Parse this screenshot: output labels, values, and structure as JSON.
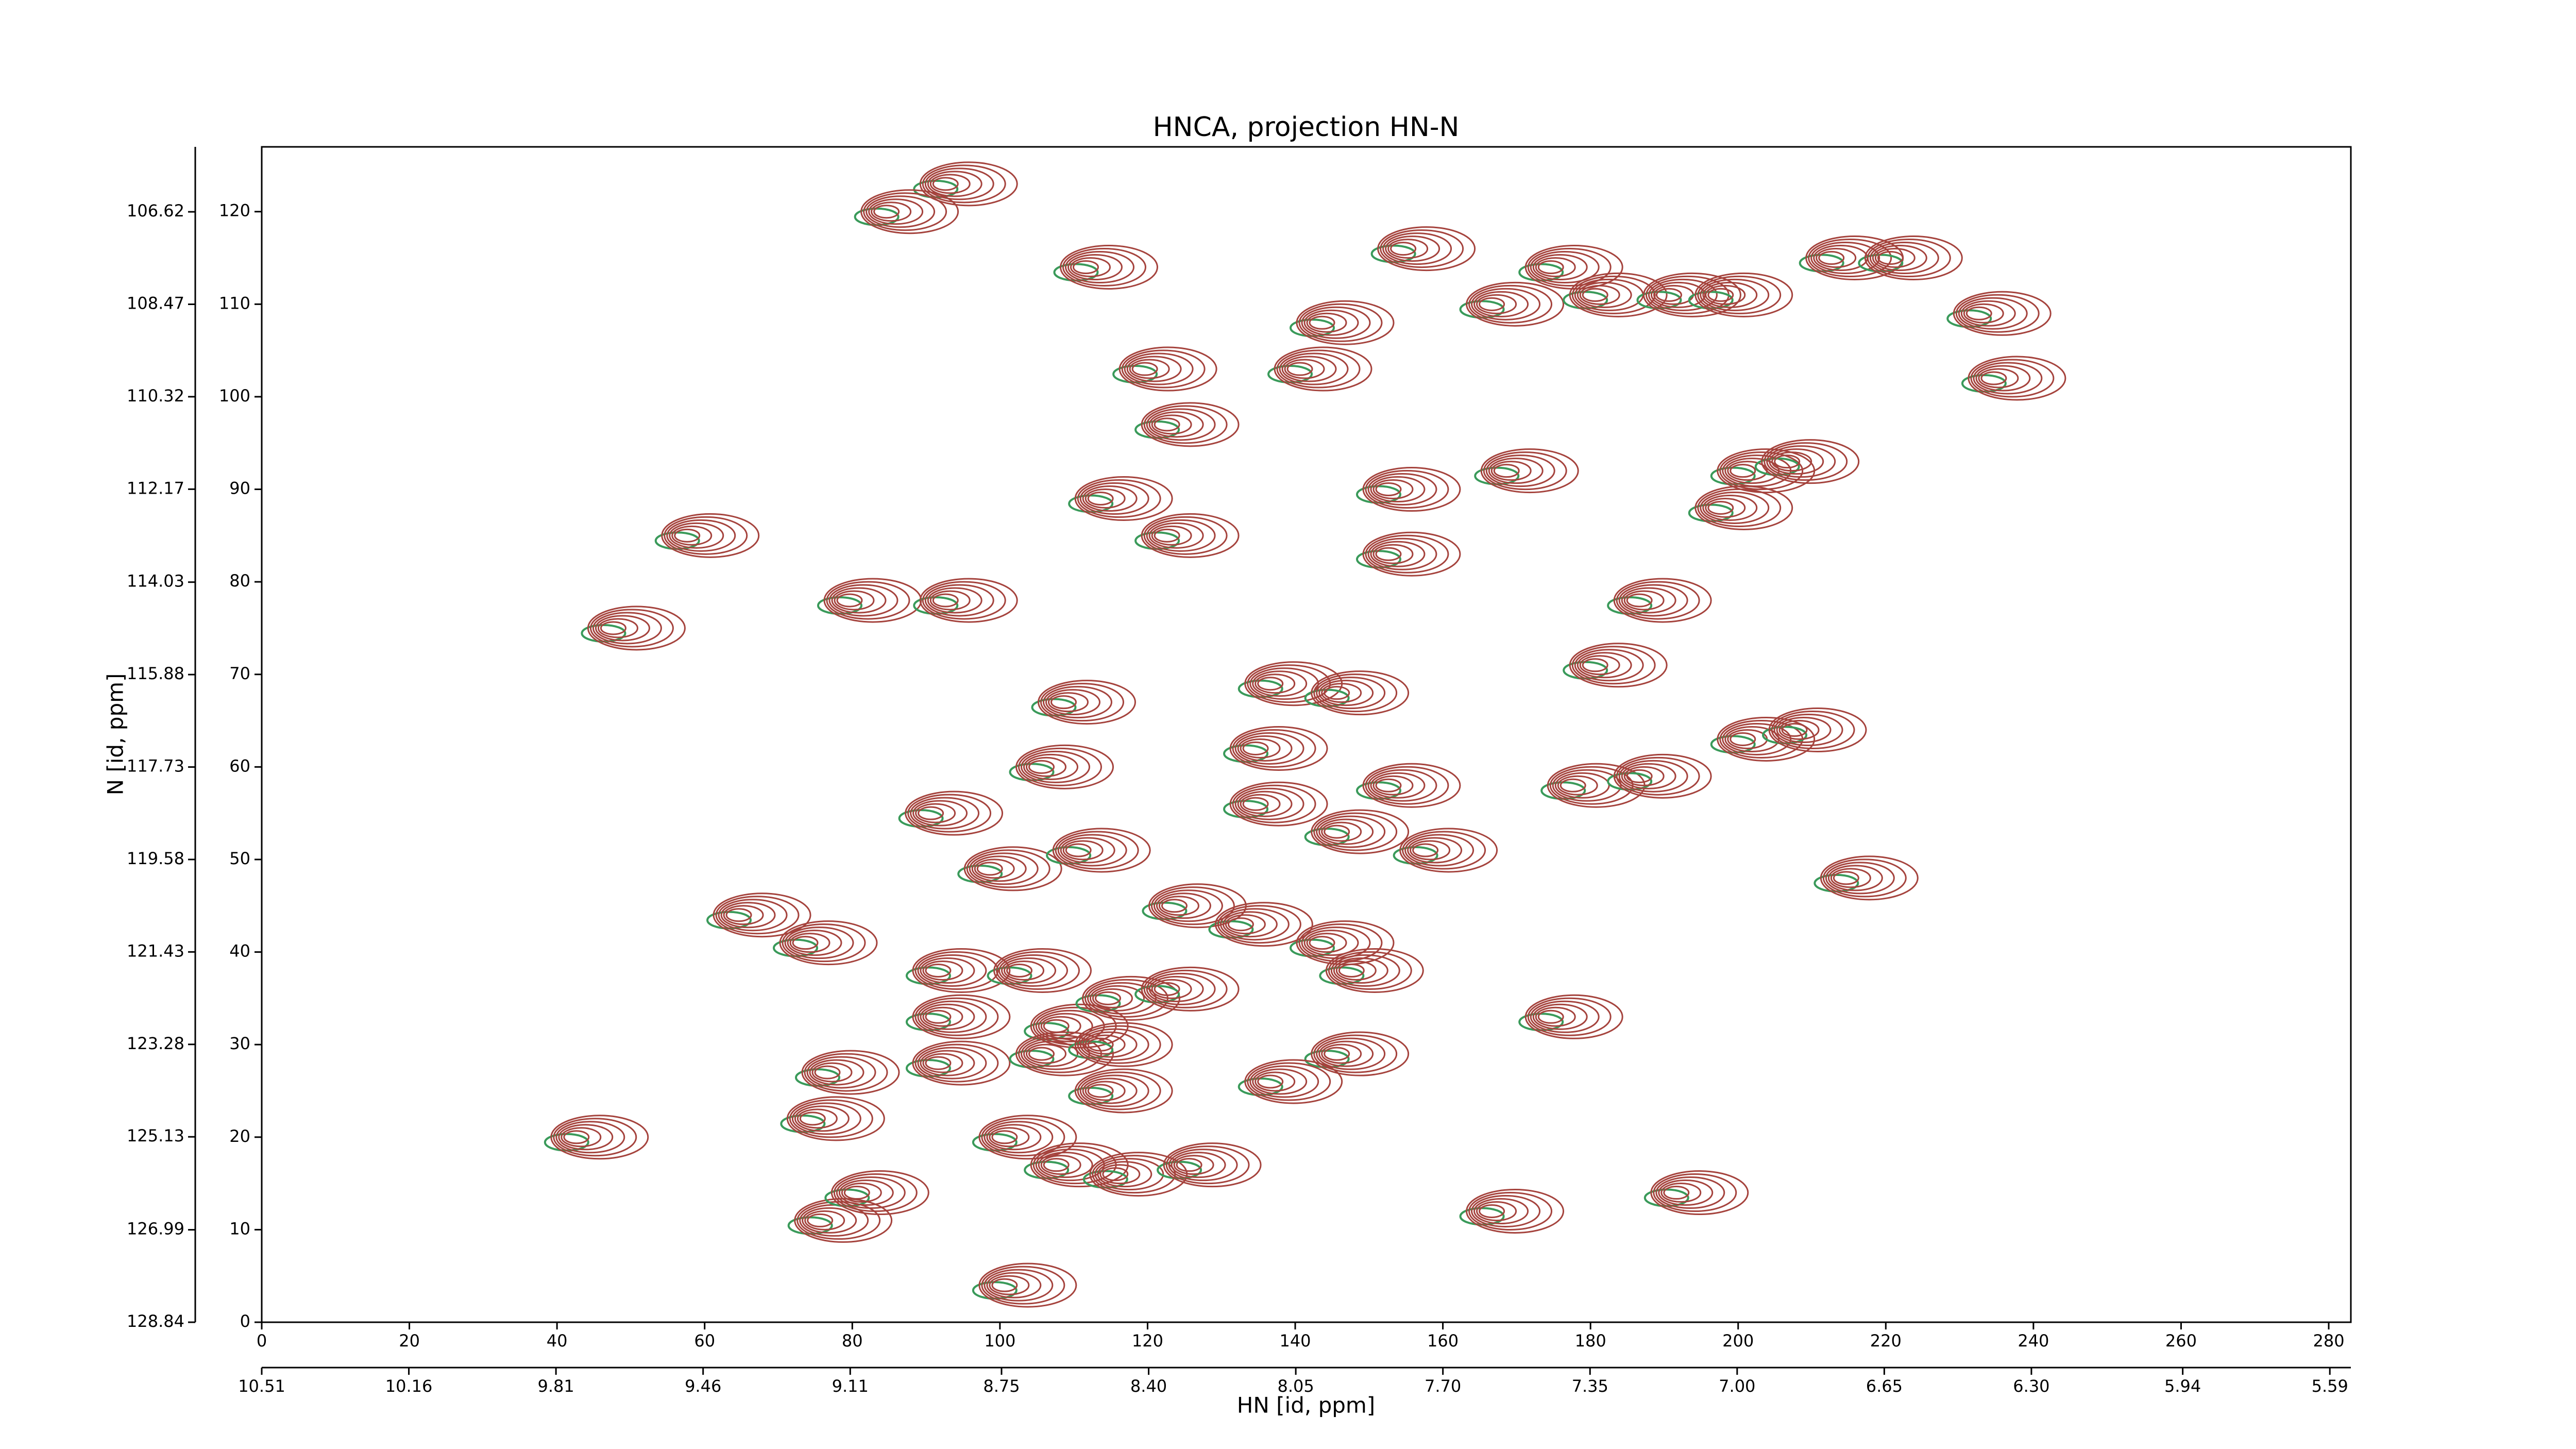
{
  "chart_data": {
    "type": "contour",
    "title": "HNCA, projection HN-N",
    "xlabel": "HN [id, ppm]",
    "ylabel": "N [id, ppm]",
    "xlim": [
      0,
      283
    ],
    "ylim": [
      0,
      127
    ],
    "xticks": [
      0,
      20,
      40,
      60,
      80,
      100,
      120,
      140,
      160,
      180,
      200,
      220,
      240,
      260,
      280
    ],
    "yticks": [
      0,
      10,
      20,
      30,
      40,
      50,
      60,
      70,
      80,
      90,
      100,
      110,
      120
    ],
    "x2lim": [
      10.51,
      5.54
    ],
    "x2ticks": [
      10.51,
      10.16,
      9.81,
      9.46,
      9.11,
      8.75,
      {
        "value": 8.4,
        "label": "8.40"
      },
      8.05,
      {
        "value": 7.7,
        "label": "7.70"
      },
      7.35,
      {
        "value": 7,
        "label": "7.00"
      },
      6.65,
      {
        "value": 6.3,
        "label": "6.30"
      },
      5.94,
      5.59
    ],
    "y2lim": [
      128.84,
      105.32
    ],
    "y2ticks": [
      128.84,
      126.99,
      125.13,
      123.28,
      121.43,
      119.58,
      117.73,
      115.88,
      114.03,
      112.17,
      110.32,
      108.47,
      106.62
    ],
    "color": "#a5433d",
    "negative_color": "#3a9a5a",
    "x": [
      92,
      84,
      111,
      119,
      122,
      113,
      122,
      57,
      47,
      79,
      92,
      154,
      166,
      143,
      140,
      174,
      180,
      190,
      197,
      212,
      220,
      232,
      234,
      152,
      152,
      168,
      200,
      206,
      197,
      186,
      180,
      136,
      145,
      108,
      134,
      200,
      207,
      177,
      186,
      105,
      134,
      152,
      90,
      145,
      157,
      214,
      98,
      110,
      123,
      132,
      143,
      147,
      73,
      64,
      91,
      91,
      102,
      107,
      114,
      122,
      174,
      91,
      105,
      113,
      145,
      136,
      76,
      74,
      42,
      100,
      113,
      107,
      115,
      125,
      75,
      80,
      166,
      191,
      100
    ],
    "y": [
      123,
      120,
      114,
      103,
      97,
      89,
      85,
      85,
      75,
      78,
      78,
      116,
      110,
      108,
      103,
      114,
      111,
      111,
      111,
      115,
      115,
      109,
      102,
      90,
      83,
      92,
      92,
      93,
      88,
      78,
      71,
      69,
      68,
      67,
      62,
      63,
      64,
      58,
      59,
      60,
      56,
      58,
      55,
      53,
      51,
      48,
      49,
      51,
      45,
      43,
      41,
      38,
      41,
      44,
      38,
      33,
      38,
      32,
      35,
      36,
      33,
      28,
      29,
      30,
      29,
      26,
      27,
      22,
      20,
      20,
      25,
      17,
      16,
      17,
      11,
      14,
      12,
      14,
      4
    ]
  }
}
